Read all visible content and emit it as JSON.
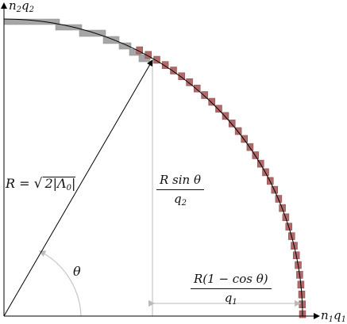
{
  "axes": {
    "y_label": {
      "var": "n",
      "sub": "2",
      "var2": "q",
      "sub2": "2"
    },
    "x_label": {
      "var": "n",
      "sub": "1",
      "var2": "q",
      "sub2": "1"
    }
  },
  "labels": {
    "radius": {
      "lhs": "R = ",
      "root": "√",
      "inner": "2|Λ",
      "sub": "0",
      "tail": "|"
    },
    "theta": "θ",
    "vertical_fraction": {
      "numerator": "R sin θ",
      "denominator_var": "q",
      "denominator_sub": "2"
    },
    "horizontal_fraction": {
      "numerator": "R(1 − cos θ)",
      "denominator_var": "q",
      "denominator_sub": "1"
    }
  },
  "colors": {
    "axis": "#000000",
    "curve": "#000000",
    "gray_cells": "#a6a6a6",
    "red_cells": "#b06a6a",
    "guide_lines": "#bfbfbf"
  },
  "steps": {
    "gray": [
      [
        5,
        24,
        70,
        7
      ],
      [
        70,
        31,
        33,
        7
      ],
      [
        100,
        38,
        33,
        8
      ],
      [
        130,
        46,
        20,
        9
      ],
      [
        150,
        54,
        15,
        8
      ],
      [
        163,
        62,
        14,
        8
      ],
      [
        175,
        69,
        14,
        9
      ]
    ],
    "red_cells": 34
  },
  "theta_deg": 63
}
